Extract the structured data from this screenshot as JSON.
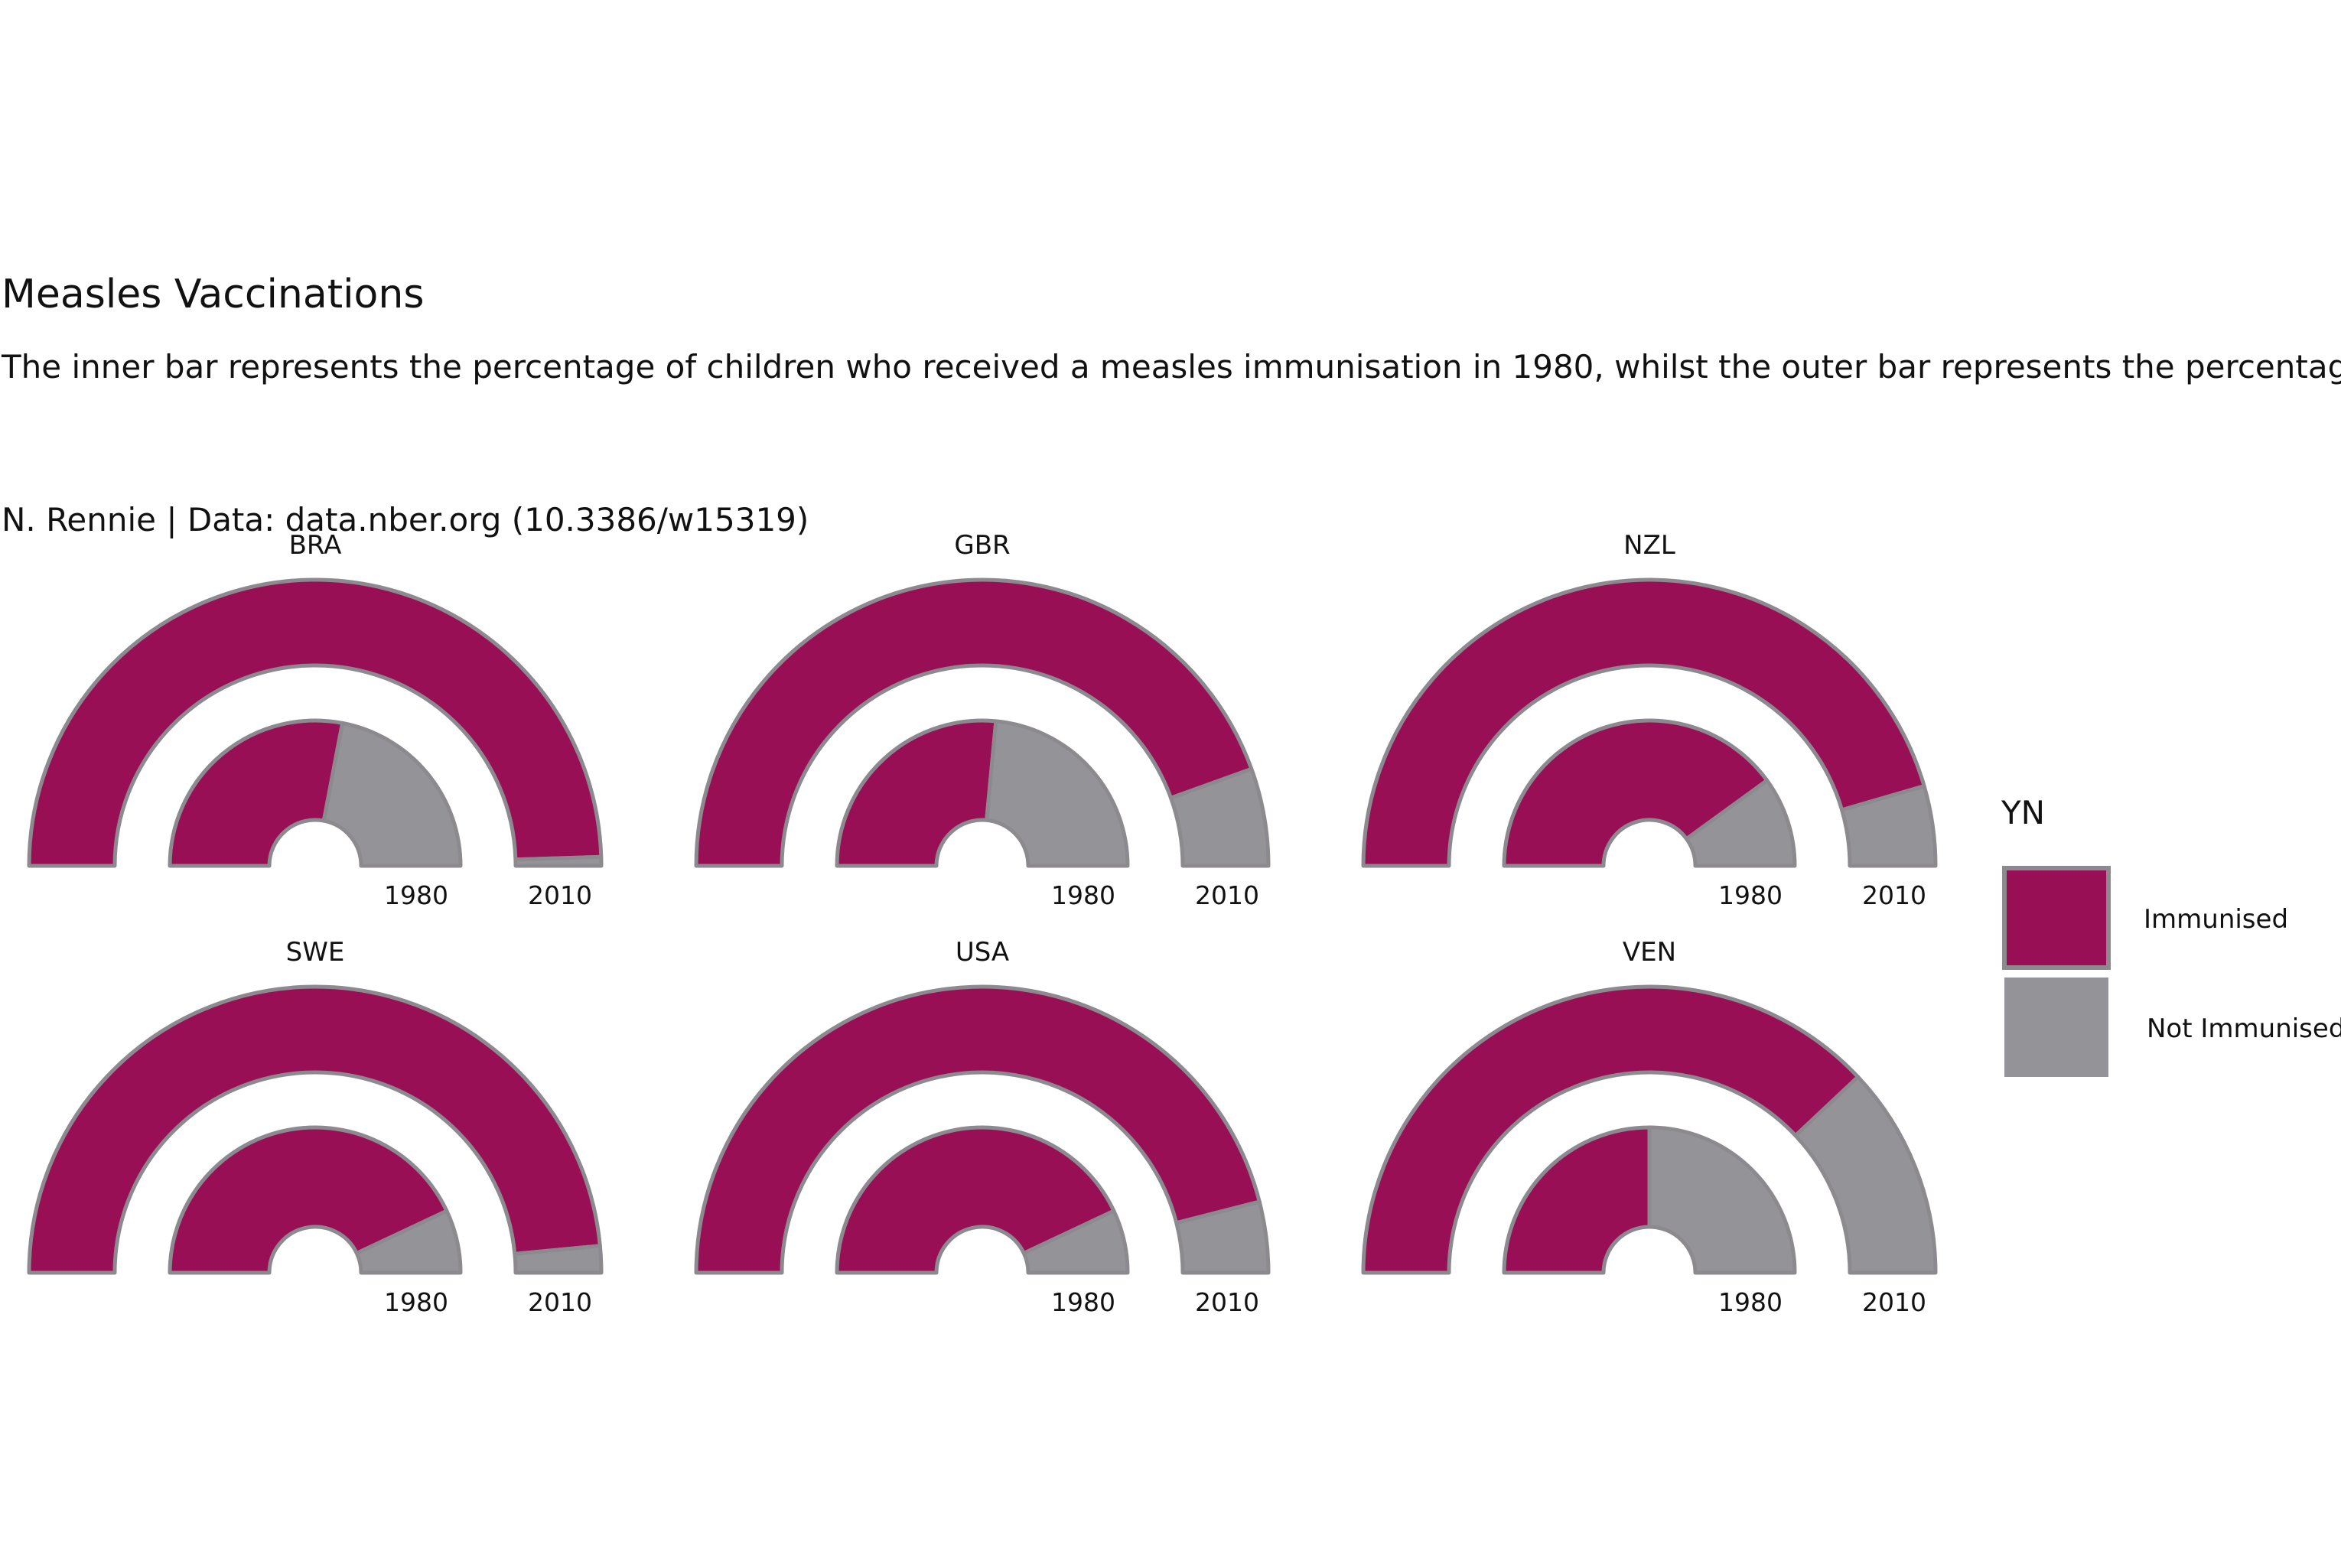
{
  "chart_data": {
    "type": "bar",
    "coord": "radial-half",
    "title": "Measles Vaccinations",
    "subtitle": "The inner bar represents the percentage of children who received a measles immunisation in 1980, whilst the outer bar represents the percentage",
    "caption": "N. Rennie | Data: data.nber.org (10.3386/w15319)",
    "years": [
      "1980",
      "2010"
    ],
    "legend": {
      "title": "YN",
      "position": "right",
      "entries": [
        {
          "label": "Immunised",
          "color": "#990F55"
        },
        {
          "label": "Not Immunised",
          "color": "#949397"
        }
      ]
    },
    "panels": [
      {
        "country": "BRA",
        "immunised": {
          "1980": 56,
          "2010": 99
        }
      },
      {
        "country": "GBR",
        "immunised": {
          "1980": 53,
          "2010": 89
        }
      },
      {
        "country": "NZL",
        "immunised": {
          "1980": 80,
          "2010": 91
        }
      },
      {
        "country": "SWE",
        "immunised": {
          "1980": 86,
          "2010": 97
        }
      },
      {
        "country": "USA",
        "immunised": {
          "1980": 86,
          "2010": 92
        }
      },
      {
        "country": "VEN",
        "immunised": {
          "1980": 50,
          "2010": 76
        }
      }
    ]
  },
  "colors": {
    "immunised": "#990F55",
    "not_immunised": "#949397",
    "outline": "#8c8a8f"
  }
}
